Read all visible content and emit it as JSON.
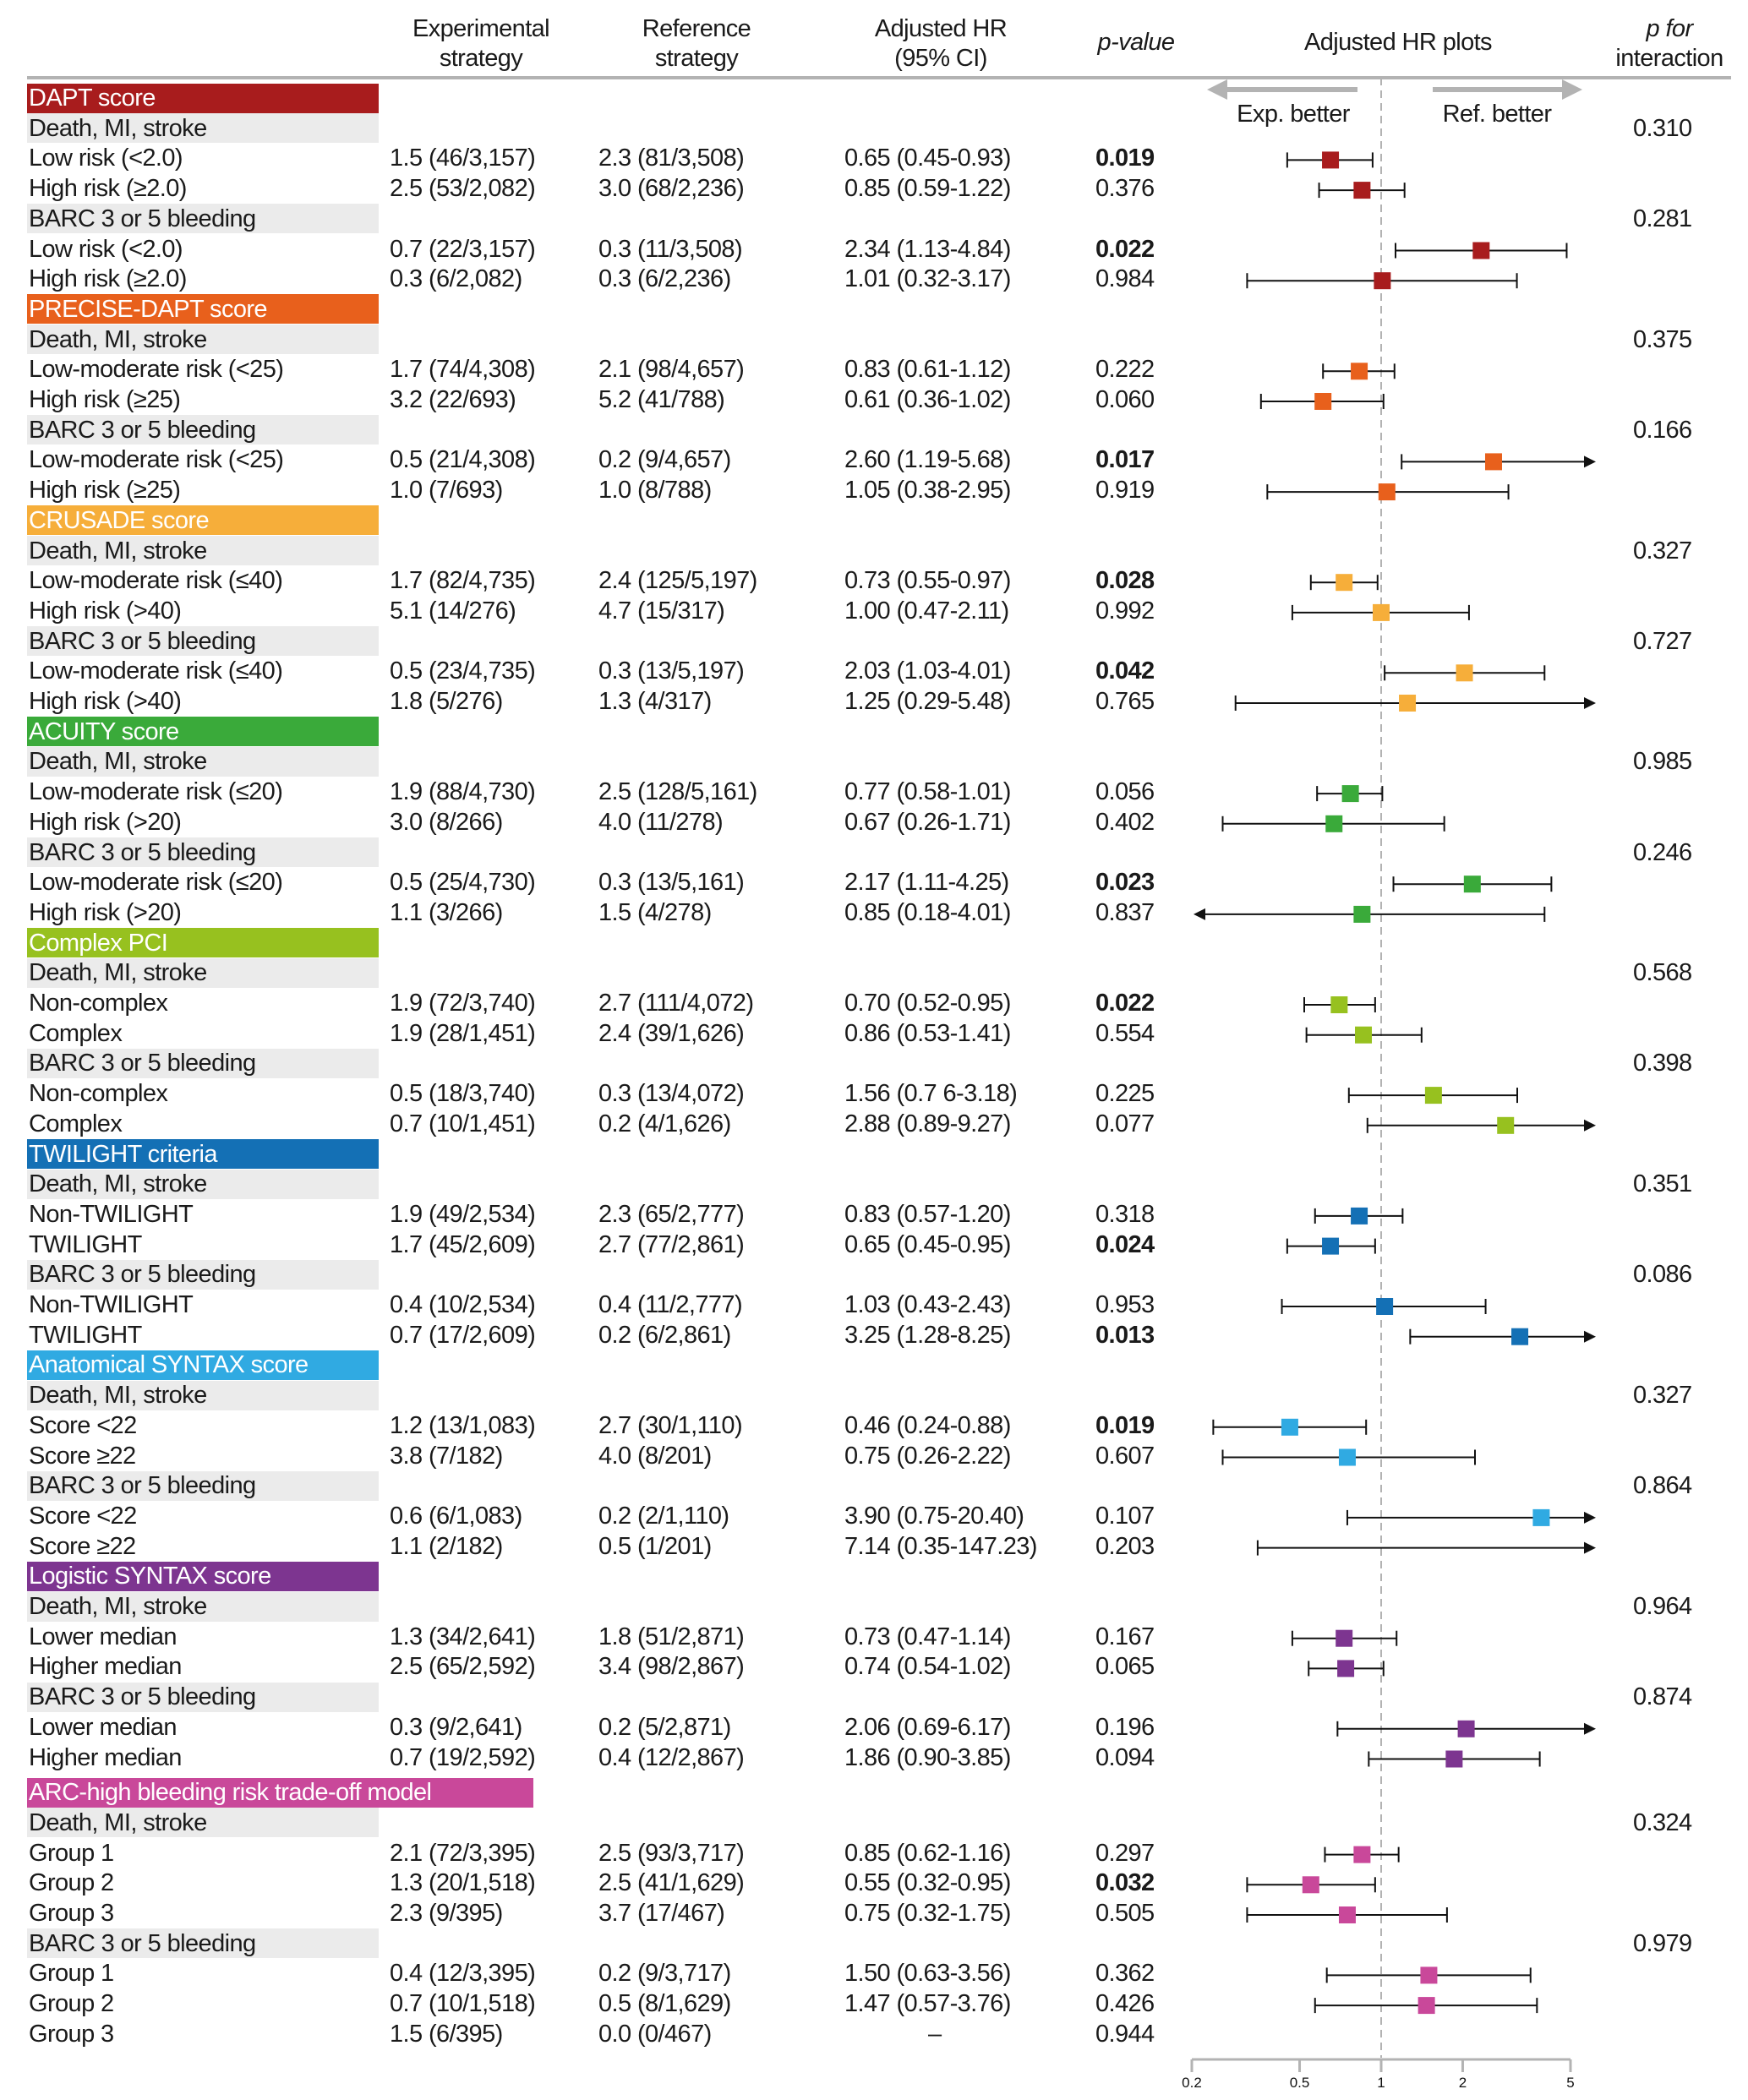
{
  "chart_data": {
    "type": "forest",
    "columns": {
      "exp_1": "Experimental",
      "exp_2": "strategy",
      "ref_1": "Reference",
      "ref_2": "strategy",
      "hr_1": "Adjusted HR",
      "hr_2": "(95% CI)",
      "p": "p-value",
      "plot": "Adjusted HR plots",
      "pint_1": "p for",
      "pint_2": "interaction"
    },
    "direction_labels": {
      "left": "Exp. better",
      "right": "Ref. better"
    },
    "x_axis": {
      "scale": "log",
      "range": [
        0.2,
        5
      ],
      "ticks": [
        "0.2",
        "0.5",
        "1",
        "2",
        "5"
      ],
      "reference_line": 1
    },
    "groups": [
      {
        "name": "DAPT score",
        "color": "#a81c1d",
        "outcomes": [
          {
            "name": "Death, MI, stroke",
            "p_interaction": "0.310",
            "rows": [
              {
                "label": "Low risk (<2.0)",
                "exp": "1.5 (46/3,157)",
                "ref": "2.3 (81/3,508)",
                "hr_text": "0.65 (0.45-0.93)",
                "p": "0.019",
                "sig": true,
                "hr": 0.65,
                "lo": 0.45,
                "hi": 0.93
              },
              {
                "label": "High risk (≥2.0)",
                "exp": "2.5 (53/2,082)",
                "ref": "3.0 (68/2,236)",
                "hr_text": "0.85 (0.59-1.22)",
                "p": "0.376",
                "sig": false,
                "hr": 0.85,
                "lo": 0.59,
                "hi": 1.22
              }
            ]
          },
          {
            "name": "BARC 3 or 5 bleeding",
            "p_interaction": "0.281",
            "rows": [
              {
                "label": "Low risk (<2.0)",
                "exp": "0.7 (22/3,157)",
                "ref": "0.3 (11/3,508)",
                "hr_text": "2.34 (1.13-4.84)",
                "p": "0.022",
                "sig": true,
                "hr": 2.34,
                "lo": 1.13,
                "hi": 4.84
              },
              {
                "label": "High risk (≥2.0)",
                "exp": "0.3 (6/2,082)",
                "ref": "0.3 (6/2,236)",
                "hr_text": "1.01 (0.32-3.17)",
                "p": "0.984",
                "sig": false,
                "hr": 1.01,
                "lo": 0.32,
                "hi": 3.17
              }
            ]
          }
        ]
      },
      {
        "name": "PRECISE-DAPT score",
        "color": "#e8601c",
        "outcomes": [
          {
            "name": "Death, MI, stroke",
            "p_interaction": "0.375",
            "rows": [
              {
                "label": "Low-moderate risk (<25)",
                "exp": "1.7 (74/4,308)",
                "ref": "2.1 (98/4,657)",
                "hr_text": "0.83 (0.61-1.12)",
                "p": "0.222",
                "sig": false,
                "hr": 0.83,
                "lo": 0.61,
                "hi": 1.12
              },
              {
                "label": "High risk (≥25)",
                "exp": "3.2 (22/693)",
                "ref": "5.2 (41/788)",
                "hr_text": "0.61 (0.36-1.02)",
                "p": "0.060",
                "sig": false,
                "hr": 0.61,
                "lo": 0.36,
                "hi": 1.02
              }
            ]
          },
          {
            "name": "BARC 3 or 5 bleeding",
            "p_interaction": "0.166",
            "rows": [
              {
                "label": "Low-moderate risk (<25)",
                "exp": "0.5 (21/4,308)",
                "ref": "0.2 (9/4,657)",
                "hr_text": "2.60 (1.19-5.68)",
                "p": "0.017",
                "sig": true,
                "hr": 2.6,
                "lo": 1.19,
                "hi": 5.68
              },
              {
                "label": "High risk (≥25)",
                "exp": "1.0 (7/693)",
                "ref": "1.0 (8/788)",
                "hr_text": "1.05 (0.38-2.95)",
                "p": "0.919",
                "sig": false,
                "hr": 1.05,
                "lo": 0.38,
                "hi": 2.95
              }
            ]
          }
        ]
      },
      {
        "name": "CRUSADE score",
        "color": "#f6ae3a",
        "outcomes": [
          {
            "name": "Death, MI, stroke",
            "p_interaction": "0.327",
            "rows": [
              {
                "label": "Low-moderate risk (≤40)",
                "exp": "1.7 (82/4,735)",
                "ref": "2.4 (125/5,197)",
                "hr_text": "0.73 (0.55-0.97)",
                "p": "0.028",
                "sig": true,
                "hr": 0.73,
                "lo": 0.55,
                "hi": 0.97
              },
              {
                "label": "High risk (>40)",
                "exp": "5.1 (14/276)",
                "ref": "4.7 (15/317)",
                "hr_text": "1.00 (0.47-2.11)",
                "p": "0.992",
                "sig": false,
                "hr": 1.0,
                "lo": 0.47,
                "hi": 2.11
              }
            ]
          },
          {
            "name": "BARC 3 or 5 bleeding",
            "p_interaction": "0.727",
            "rows": [
              {
                "label": "Low-moderate risk (≤40)",
                "exp": "0.5 (23/4,735)",
                "ref": "0.3 (13/5,197)",
                "hr_text": "2.03 (1.03-4.01)",
                "p": "0.042",
                "sig": true,
                "hr": 2.03,
                "lo": 1.03,
                "hi": 4.01
              },
              {
                "label": "High risk (>40)",
                "exp": "1.8 (5/276)",
                "ref": "1.3 (4/317)",
                "hr_text": "1.25 (0.29-5.48)",
                "p": "0.765",
                "sig": false,
                "hr": 1.25,
                "lo": 0.29,
                "hi": 5.48
              }
            ]
          }
        ]
      },
      {
        "name": "ACUITY score",
        "color": "#3aaa3a",
        "outcomes": [
          {
            "name": "Death, MI, stroke",
            "p_interaction": "0.985",
            "rows": [
              {
                "label": "Low-moderate risk (≤20)",
                "exp": "1.9 (88/4,730)",
                "ref": "2.5 (128/5,161)",
                "hr_text": "0.77 (0.58-1.01)",
                "p": "0.056",
                "sig": false,
                "hr": 0.77,
                "lo": 0.58,
                "hi": 1.01
              },
              {
                "label": "High risk (>20)",
                "exp": "3.0 (8/266)",
                "ref": "4.0 (11/278)",
                "hr_text": "0.67 (0.26-1.71)",
                "p": "0.402",
                "sig": false,
                "hr": 0.67,
                "lo": 0.26,
                "hi": 1.71
              }
            ]
          },
          {
            "name": "BARC 3 or 5 bleeding",
            "p_interaction": "0.246",
            "rows": [
              {
                "label": "Low-moderate risk (≤20)",
                "exp": "0.5 (25/4,730)",
                "ref": "0.3 (13/5,161)",
                "hr_text": "2.17 (1.11-4.25)",
                "p": "0.023",
                "sig": true,
                "hr": 2.17,
                "lo": 1.11,
                "hi": 4.25
              },
              {
                "label": "High risk (>20)",
                "exp": "1.1 (3/266)",
                "ref": "1.5 (4/278)",
                "hr_text": "0.85 (0.18-4.01)",
                "p": "0.837",
                "sig": false,
                "hr": 0.85,
                "lo": 0.18,
                "hi": 4.01
              }
            ]
          }
        ]
      },
      {
        "name": "Complex PCI",
        "color": "#97c11f",
        "outcomes": [
          {
            "name": "Death, MI, stroke",
            "p_interaction": "0.568",
            "rows": [
              {
                "label": "Non-complex",
                "exp": "1.9 (72/3,740)",
                "ref": "2.7 (111/4,072)",
                "hr_text": "0.70 (0.52-0.95)",
                "p": "0.022",
                "sig": true,
                "hr": 0.7,
                "lo": 0.52,
                "hi": 0.95
              },
              {
                "label": "Complex",
                "exp": "1.9 (28/1,451)",
                "ref": "2.4 (39/1,626)",
                "hr_text": "0.86 (0.53-1.41)",
                "p": "0.554",
                "sig": false,
                "hr": 0.86,
                "lo": 0.53,
                "hi": 1.41
              }
            ]
          },
          {
            "name": "BARC 3 or 5 bleeding",
            "p_interaction": "0.398",
            "rows": [
              {
                "label": "Non-complex",
                "exp": "0.5 (18/3,740)",
                "ref": "0.3 (13/4,072)",
                "hr_text": "1.56 (0.7 6-3.18)",
                "p": "0.225",
                "sig": false,
                "hr": 1.56,
                "lo": 0.76,
                "hi": 3.18
              },
              {
                "label": "Complex",
                "exp": "0.7 (10/1,451)",
                "ref": "0.2 (4/1,626)",
                "hr_text": "2.88 (0.89-9.27)",
                "p": "0.077",
                "sig": false,
                "hr": 2.88,
                "lo": 0.89,
                "hi": 9.27
              }
            ]
          }
        ]
      },
      {
        "name": "TWILIGHT criteria",
        "color": "#1470b5",
        "outcomes": [
          {
            "name": "Death, MI, stroke",
            "p_interaction": "0.351",
            "rows": [
              {
                "label": "Non-TWILIGHT",
                "exp": "1.9 (49/2,534)",
                "ref": "2.3 (65/2,777)",
                "hr_text": "0.83 (0.57-1.20)",
                "p": "0.318",
                "sig": false,
                "hr": 0.83,
                "lo": 0.57,
                "hi": 1.2
              },
              {
                "label": "TWILIGHT",
                "exp": "1.7 (45/2,609)",
                "ref": "2.7 (77/2,861)",
                "hr_text": "0.65 (0.45-0.95)",
                "p": "0.024",
                "sig": true,
                "hr": 0.65,
                "lo": 0.45,
                "hi": 0.95
              }
            ]
          },
          {
            "name": "BARC 3 or 5 bleeding",
            "p_interaction": "0.086",
            "rows": [
              {
                "label": "Non-TWILIGHT",
                "exp": "0.4 (10/2,534)",
                "ref": "0.4 (11/2,777)",
                "hr_text": "1.03 (0.43-2.43)",
                "p": "0.953",
                "sig": false,
                "hr": 1.03,
                "lo": 0.43,
                "hi": 2.43
              },
              {
                "label": "TWILIGHT",
                "exp": "0.7 (17/2,609)",
                "ref": "0.2 (6/2,861)",
                "hr_text": "3.25 (1.28-8.25)",
                "p": "0.013",
                "sig": true,
                "hr": 3.25,
                "lo": 1.28,
                "hi": 8.25
              }
            ]
          }
        ]
      },
      {
        "name": "Anatomical SYNTAX score",
        "color": "#30aae2",
        "outcomes": [
          {
            "name": "Death, MI, stroke",
            "p_interaction": "0.327",
            "rows": [
              {
                "label": "Score <22",
                "exp": "1.2 (13/1,083)",
                "ref": "2.7 (30/1,110)",
                "hr_text": "0.46 (0.24-0.88)",
                "p": "0.019",
                "sig": true,
                "hr": 0.46,
                "lo": 0.24,
                "hi": 0.88
              },
              {
                "label": "Score ≥22",
                "exp": "3.8 (7/182)",
                "ref": "4.0 (8/201)",
                "hr_text": "0.75 (0.26-2.22)",
                "p": "0.607",
                "sig": false,
                "hr": 0.75,
                "lo": 0.26,
                "hi": 2.22
              }
            ]
          },
          {
            "name": "BARC 3 or 5 bleeding",
            "p_interaction": "0.864",
            "rows": [
              {
                "label": "Score <22",
                "exp": "0.6 (6/1,083)",
                "ref": "0.2 (2/1,110)",
                "hr_text": "3.90 (0.75-20.40)",
                "p": "0.107",
                "sig": false,
                "hr": 3.9,
                "lo": 0.75,
                "hi": 20.4
              },
              {
                "label": "Score ≥22",
                "exp": "1.1 (2/182)",
                "ref": "0.5 (1/201)",
                "hr_text": "7.14 (0.35-147.23)",
                "p": "0.203",
                "sig": false,
                "hr": 7.14,
                "lo": 0.35,
                "hi": 147.23
              }
            ]
          }
        ]
      },
      {
        "name": "Logistic SYNTAX score",
        "color": "#7d3590",
        "outcomes": [
          {
            "name": "Death, MI, stroke",
            "p_interaction": "0.964",
            "rows": [
              {
                "label": "Lower median",
                "exp": "1.3 (34/2,641)",
                "ref": "1.8 (51/2,871)",
                "hr_text": "0.73 (0.47-1.14)",
                "p": "0.167",
                "sig": false,
                "hr": 0.73,
                "lo": 0.47,
                "hi": 1.14
              },
              {
                "label": "Higher median",
                "exp": "2.5 (65/2,592)",
                "ref": "3.4 (98/2,867)",
                "hr_text": "0.74 (0.54-1.02)",
                "p": "0.065",
                "sig": false,
                "hr": 0.74,
                "lo": 0.54,
                "hi": 1.02
              }
            ]
          },
          {
            "name": "BARC 3 or 5 bleeding",
            "p_interaction": "0.874",
            "rows": [
              {
                "label": "Lower median",
                "exp": "0.3 (9/2,641)",
                "ref": "0.2 (5/2,871)",
                "hr_text": "2.06 (0.69-6.17)",
                "p": "0.196",
                "sig": false,
                "hr": 2.06,
                "lo": 0.69,
                "hi": 6.17
              },
              {
                "label": "Higher median",
                "exp": "0.7 (19/2,592)",
                "ref": "0.4 (12/2,867)",
                "hr_text": "1.86 (0.90-3.85)",
                "p": "0.094",
                "sig": false,
                "hr": 1.86,
                "lo": 0.9,
                "hi": 3.85
              }
            ]
          }
        ]
      },
      {
        "name": "ARC-high bleeding risk trade-off model",
        "color": "#c9489a",
        "outcomes": [
          {
            "name": "Death, MI, stroke",
            "p_interaction": "0.324",
            "rows": [
              {
                "label": "Group 1",
                "exp": "2.1 (72/3,395)",
                "ref": "2.5 (93/3,717)",
                "hr_text": "0.85 (0.62-1.16)",
                "p": "0.297",
                "sig": false,
                "hr": 0.85,
                "lo": 0.62,
                "hi": 1.16
              },
              {
                "label": "Group 2",
                "exp": "1.3 (20/1,518)",
                "ref": "2.5 (41/1,629)",
                "hr_text": "0.55 (0.32-0.95)",
                "p": "0.032",
                "sig": true,
                "hr": 0.55,
                "lo": 0.32,
                "hi": 0.95
              },
              {
                "label": "Group 3",
                "exp": "2.3 (9/395)",
                "ref": "3.7 (17/467)",
                "hr_text": "0.75 (0.32-1.75)",
                "p": "0.505",
                "sig": false,
                "hr": 0.75,
                "lo": 0.32,
                "hi": 1.75
              }
            ]
          },
          {
            "name": "BARC 3 or 5 bleeding",
            "p_interaction": "0.979",
            "rows": [
              {
                "label": "Group 1",
                "exp": "0.4 (12/3,395)",
                "ref": "0.2 (9/3,717)",
                "hr_text": "1.50 (0.63-3.56)",
                "p": "0.362",
                "sig": false,
                "hr": 1.5,
                "lo": 0.63,
                "hi": 3.56
              },
              {
                "label": "Group 2",
                "exp": "0.7 (10/1,518)",
                "ref": "0.5 (8/1,629)",
                "hr_text": "1.47 (0.57-3.76)",
                "p": "0.426",
                "sig": false,
                "hr": 1.47,
                "lo": 0.57,
                "hi": 3.76
              },
              {
                "label": "Group 3",
                "exp": "1.5 (6/395)",
                "ref": "0.0 (0/467)",
                "hr_text": "–",
                "p": "0.944",
                "sig": false,
                "hr": null,
                "lo": null,
                "hi": null
              }
            ]
          }
        ]
      }
    ]
  }
}
